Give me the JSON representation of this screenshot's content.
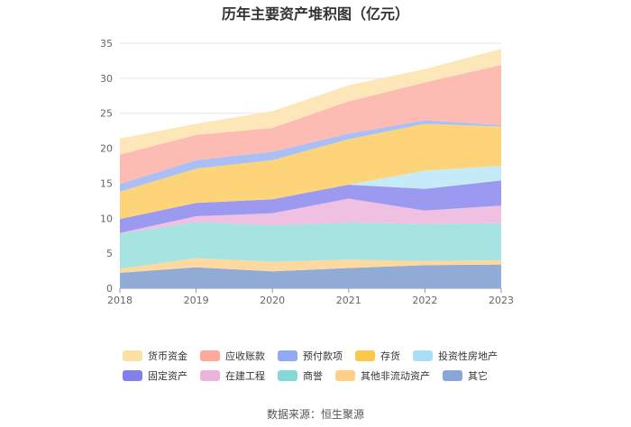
{
  "chart_data": {
    "type": "area",
    "stacked": true,
    "title": "历年主要资产堆积图（亿元）",
    "source": "数据来源：恒生聚源",
    "x": [
      "2018",
      "2019",
      "2020",
      "2021",
      "2022",
      "2023"
    ],
    "ylim": [
      0,
      35
    ],
    "yticks": [
      "0",
      "5",
      "10",
      "15",
      "20",
      "25",
      "30",
      "35"
    ],
    "grid": true,
    "legend_position": "bottom",
    "series": [
      {
        "name": "其它",
        "color": "#8fabd6",
        "values": [
          2.2,
          3.0,
          2.4,
          2.9,
          3.3,
          3.4
        ]
      },
      {
        "name": "其他非流动资产",
        "color": "#fdd9a0",
        "values": [
          0.6,
          1.3,
          1.4,
          1.2,
          0.6,
          0.6
        ]
      },
      {
        "name": "商誉",
        "color": "#a6e3e1",
        "values": [
          5.0,
          5.2,
          5.2,
          5.3,
          5.3,
          5.3
        ]
      },
      {
        "name": "在建工程",
        "color": "#efc0e2",
        "values": [
          0.1,
          0.8,
          1.7,
          3.4,
          1.9,
          2.5
        ]
      },
      {
        "name": "固定资产",
        "color": "#9c9af0",
        "values": [
          2.0,
          1.9,
          2.0,
          2.0,
          3.1,
          3.6
        ]
      },
      {
        "name": "投资性房地产",
        "color": "#c5ebf9",
        "values": [
          0.0,
          0.0,
          0.0,
          0.0,
          2.6,
          2.1
        ]
      },
      {
        "name": "存货",
        "color": "#fdd479",
        "values": [
          3.9,
          4.9,
          5.6,
          6.5,
          6.7,
          5.6
        ]
      },
      {
        "name": "预付款项",
        "color": "#a9bff6",
        "values": [
          1.1,
          1.2,
          1.2,
          0.8,
          0.5,
          0.2
        ]
      },
      {
        "name": "应收账款",
        "color": "#fdbcb3",
        "values": [
          4.2,
          3.6,
          3.4,
          4.6,
          5.4,
          8.6
        ]
      },
      {
        "name": "货币资金",
        "color": "#fde6b7",
        "values": [
          2.3,
          1.6,
          2.4,
          2.3,
          1.9,
          2.3
        ]
      }
    ]
  },
  "legend_order": [
    "货币资金",
    "应收账款",
    "预付款项",
    "存货",
    "投资性房地产",
    "固定资产",
    "在建工程",
    "商誉",
    "其他非流动资产",
    "其它"
  ],
  "legend_colors": {
    "货币资金": "#fde0a3",
    "应收账款": "#fca89b",
    "预付款项": "#91a8f3",
    "存货": "#fdc74a",
    "投资性房地产": "#a9def7",
    "固定资产": "#8180ec",
    "在建工程": "#eab5dd",
    "商誉": "#86d8d6",
    "其他非流动资产": "#fdd08a",
    "其它": "#8aa6d8"
  }
}
